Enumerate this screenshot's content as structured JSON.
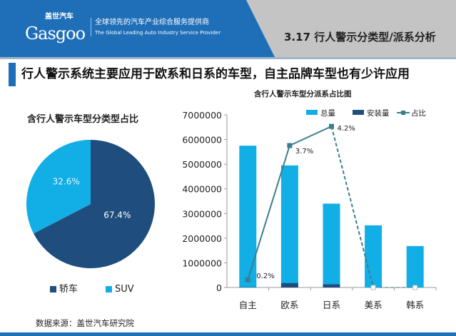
{
  "header": {
    "logo_cn": "盖世汽车",
    "logo_en": "Gasgoo",
    "slogan_cn": "全球领先的汽车产业综合服务提供商",
    "slogan_en": "The Global Leading Auto Industry Service Provider",
    "section_title": "3.17 行人警示分类型/派系分析"
  },
  "subtitle": "行人警示系统主要应用于欧系和日系的车型，自主品牌车型也有少许应用",
  "source": "数据来源：盖世汽车研究院",
  "colors": {
    "dark": "#1f4e7e",
    "light": "#12aee6",
    "line": "#3a7f8f",
    "brand": "#1f6fb8"
  },
  "chart_data": [
    {
      "type": "pie",
      "title": "含行人警示车型分类型占比",
      "slices": [
        {
          "label": "轿车",
          "value": 67.4,
          "display": "67.4%",
          "color": "#1f4e7e"
        },
        {
          "label": "SUV",
          "value": 32.6,
          "display": "32.6%",
          "color": "#12aee6"
        }
      ],
      "legend": "bottom"
    },
    {
      "type": "bar",
      "title": "含行人警示车型分派系占比图",
      "categories": [
        "自主",
        "欧系",
        "日系",
        "美系",
        "韩系"
      ],
      "series": [
        {
          "name": "总量",
          "type": "bar",
          "values": [
            5750000,
            4950000,
            3400000,
            2520000,
            1680000
          ]
        },
        {
          "name": "安装量",
          "type": "bar",
          "values": [
            10000,
            180000,
            130000,
            0,
            0
          ]
        },
        {
          "name": "占比",
          "type": "line",
          "values": [
            0.2,
            3.7,
            4.2,
            0,
            0
          ],
          "labels": [
            "0.2%",
            "3.7%",
            "4.2%",
            "",
            ""
          ]
        }
      ],
      "ylim": [
        0,
        7000000
      ],
      "yticks": [
        "0",
        "1000000",
        "2000000",
        "3000000",
        "4000000",
        "5000000",
        "6000000",
        "7000000"
      ],
      "y2lim": [
        0,
        4.5
      ],
      "legend": "top-right",
      "grid": false
    }
  ]
}
